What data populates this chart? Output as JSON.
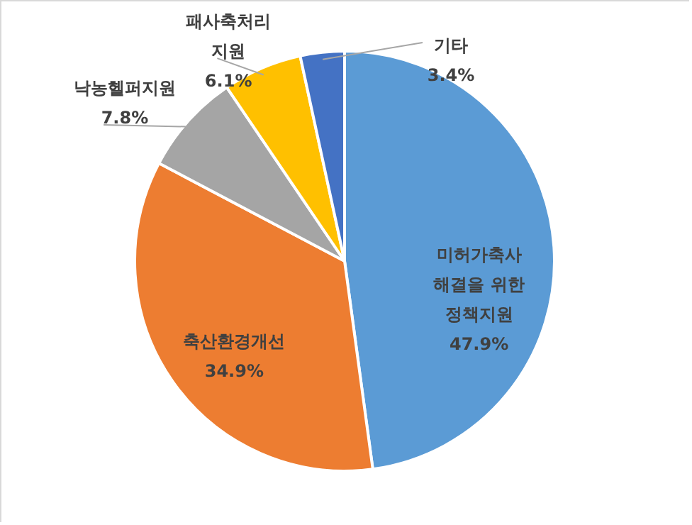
{
  "chart_data": {
    "type": "pie",
    "categories": [
      "미허가축사\n해결을 위한\n정책지원",
      "축산환경개선",
      "낙농헬퍼지원",
      "패사축처리\n지원",
      "기타"
    ],
    "values": [
      47.9,
      34.9,
      7.8,
      6.1,
      3.4
    ],
    "colors": [
      "#5b9bd5",
      "#ed7d31",
      "#a5a5a5",
      "#ffc000",
      "#4472c4"
    ],
    "value_labels": [
      "47.9%",
      "34.9%",
      "7.8%",
      "6.1%",
      "3.4%"
    ]
  }
}
